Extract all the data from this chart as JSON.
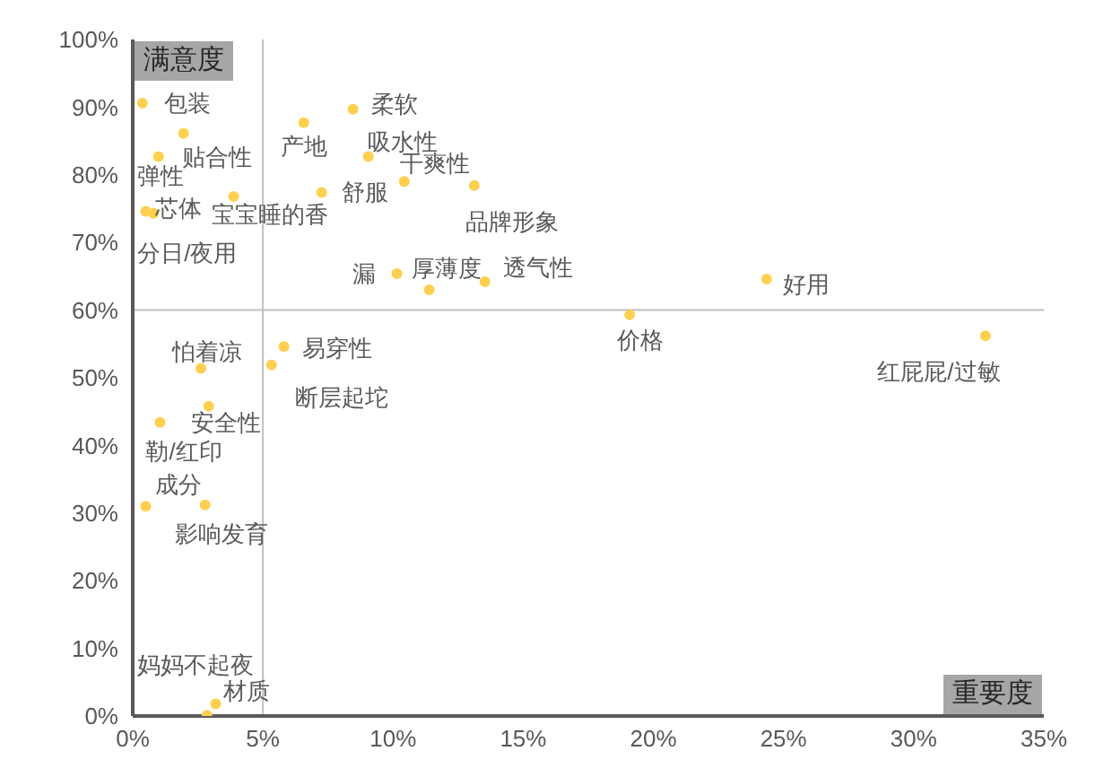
{
  "chart_data": {
    "type": "scatter",
    "xlabel": "重要度",
    "ylabel": "满意度",
    "x": [
      0.37,
      8.46,
      6.57,
      1.95,
      0.99,
      9.05,
      10.43,
      13.12,
      7.26,
      3.88,
      0.5,
      0.8,
      10.15,
      11.39,
      13.53,
      19.09,
      24.35,
      32.76,
      5.81,
      5.33,
      2.62,
      2.92,
      1.05,
      0.5,
      2.78,
      3.19,
      2.85
    ],
    "series": [
      {
        "color": "#ffd04f",
        "values": [
          90.6,
          89.7,
          87.7,
          86.1,
          82.7,
          82.7,
          79.0,
          78.4,
          77.4,
          76.8,
          74.6,
          74.3,
          65.4,
          63.0,
          64.2,
          59.3,
          64.6,
          56.2,
          54.6,
          51.9,
          51.4,
          45.8,
          43.4,
          31.0,
          31.2,
          1.8,
          0.1
        ]
      }
    ],
    "xlim": [
      0,
      35
    ],
    "ylim": [
      0,
      100
    ],
    "xticks": [
      {
        "value": 0,
        "label": "0%"
      },
      {
        "value": 5,
        "label": "5%"
      },
      {
        "value": 10,
        "label": "10%"
      },
      {
        "value": 15,
        "label": "15%"
      },
      {
        "value": 20,
        "label": "20%"
      },
      {
        "value": 25,
        "label": "25%"
      },
      {
        "value": 30,
        "label": "30%"
      },
      {
        "value": 35,
        "label": "35%"
      }
    ],
    "yticks": [
      {
        "value": 0,
        "label": "0%"
      },
      {
        "value": 10,
        "label": "10%"
      },
      {
        "value": 20,
        "label": "20%"
      },
      {
        "value": 30,
        "label": "30%"
      },
      {
        "value": 40,
        "label": "40%"
      },
      {
        "value": 50,
        "label": "50%"
      },
      {
        "value": 60,
        "label": "60%"
      },
      {
        "value": 70,
        "label": "70%"
      },
      {
        "value": 80,
        "label": "80%"
      },
      {
        "value": 90,
        "label": "90%"
      },
      {
        "value": 100,
        "label": "100%"
      }
    ],
    "ref_lines": [
      {
        "axis": "x",
        "value": 5,
        "color": "#bfbfbf"
      },
      {
        "axis": "y",
        "value": 60,
        "color": "#bfbfbf"
      }
    ],
    "grid": false,
    "legend": false,
    "marker": "circle",
    "annotations": [
      {
        "text": "包装",
        "x": 0.37,
        "y": 90.6
      },
      {
        "text": "柔软",
        "x": 8.46,
        "y": 89.7
      },
      {
        "text": "产地",
        "x": 6.57,
        "y": 87.7
      },
      {
        "text": "贴合性",
        "x": 1.95,
        "y": 86.1
      },
      {
        "text": "弹性",
        "x": 0.99,
        "y": 82.7
      },
      {
        "text": "吸水性",
        "x": 9.05,
        "y": 82.7
      },
      {
        "text": "干爽性",
        "x": 10.43,
        "y": 79.0
      },
      {
        "text": "品牌形象",
        "x": 13.12,
        "y": 78.4
      },
      {
        "text": "舒服",
        "x": 7.26,
        "y": 77.4
      },
      {
        "text": "宝宝睡的香",
        "x": 3.88,
        "y": 76.8
      },
      {
        "text": "芯体",
        "x": 0.5,
        "y": 74.6
      },
      {
        "text": "分日/夜用",
        "x": 0.8,
        "y": 74.3
      },
      {
        "text": "漏",
        "x": 10.15,
        "y": 65.4
      },
      {
        "text": "厚薄度",
        "x": 11.39,
        "y": 63.0
      },
      {
        "text": "透气性",
        "x": 13.53,
        "y": 64.2
      },
      {
        "text": "价格",
        "x": 19.09,
        "y": 59.3
      },
      {
        "text": "好用",
        "x": 24.35,
        "y": 64.6
      },
      {
        "text": "红屁屁/过敏",
        "x": 32.76,
        "y": 56.2
      },
      {
        "text": "易穿性",
        "x": 5.81,
        "y": 54.6
      },
      {
        "text": "断层起坨",
        "x": 5.33,
        "y": 51.9
      },
      {
        "text": "怕着凉",
        "x": 2.62,
        "y": 51.4
      },
      {
        "text": "安全性",
        "x": 2.92,
        "y": 45.8
      },
      {
        "text": "勒/红印",
        "x": 1.05,
        "y": 43.4
      },
      {
        "text": "成分",
        "x": 0.5,
        "y": 31.0
      },
      {
        "text": "影响发育",
        "x": 2.78,
        "y": 31.2
      },
      {
        "text": "材质",
        "x": 3.19,
        "y": 1.8
      },
      {
        "text": "妈妈不起夜",
        "x": 2.85,
        "y": 0.1
      }
    ]
  }
}
